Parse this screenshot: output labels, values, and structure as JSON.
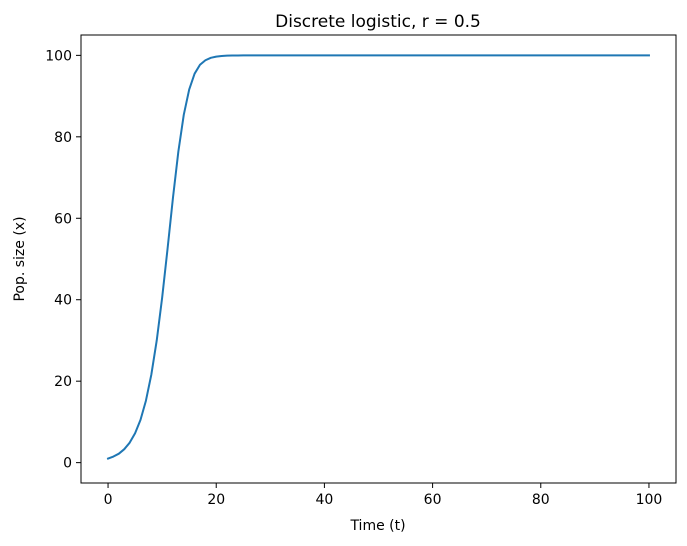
{
  "chart_data": {
    "type": "line",
    "title": "Discrete logistic, r = 0.5",
    "xlabel": "Time (t)",
    "ylabel": "Pop. size (x)",
    "xlim": [
      -5,
      105
    ],
    "ylim": [
      -5,
      105
    ],
    "xticks": [
      0,
      20,
      40,
      60,
      80,
      100
    ],
    "yticks": [
      0,
      20,
      40,
      60,
      80,
      100
    ],
    "grid": false,
    "series": [
      {
        "color": "#1f77b4",
        "x": [
          0,
          1,
          2,
          3,
          4,
          5,
          6,
          7,
          8,
          9,
          10,
          11,
          12,
          13,
          14,
          15,
          16,
          17,
          18,
          19,
          20,
          21,
          22,
          23,
          24,
          25,
          30,
          40,
          50,
          60,
          70,
          80,
          90,
          100
        ],
        "y": [
          1,
          1.5,
          2.2,
          3.3,
          4.9,
          7.2,
          10.5,
          15.2,
          21.6,
          30,
          40.5,
          52.5,
          65,
          76.4,
          85.4,
          91.6,
          95.5,
          97.7,
          98.8,
          99.4,
          99.7,
          99.85,
          99.93,
          99.96,
          99.98,
          99.99,
          100,
          100,
          100,
          100,
          100,
          100,
          100,
          100
        ]
      }
    ]
  }
}
